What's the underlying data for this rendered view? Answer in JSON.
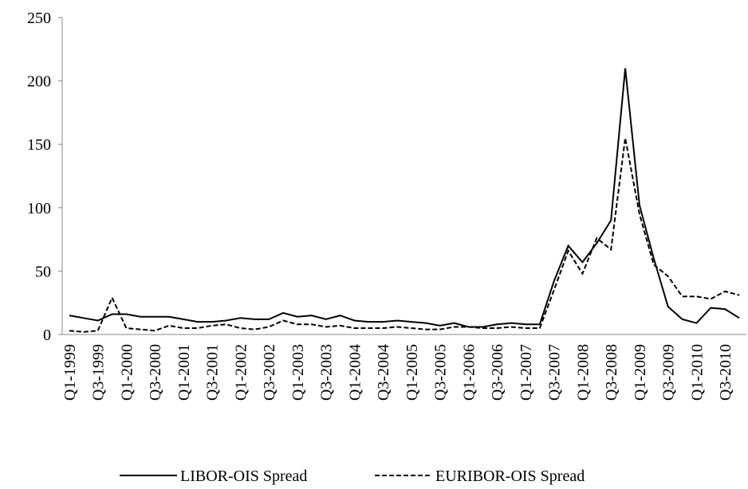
{
  "chart_data": {
    "type": "line",
    "categories": [
      "Q1-1999",
      null,
      "Q3-1999",
      null,
      "Q1-2000",
      null,
      "Q3-2000",
      null,
      "Q1-2001",
      null,
      "Q3-2001",
      null,
      "Q1-2002",
      null,
      "Q3-2002",
      null,
      "Q1-2003",
      null,
      "Q3-2003",
      null,
      "Q1-2004",
      null,
      "Q3-2004",
      null,
      "Q1-2005",
      null,
      "Q3-2005",
      null,
      "Q1-2006",
      null,
      "Q3-2006",
      null,
      "Q1-2007",
      null,
      "Q3-2007",
      null,
      "Q1-2008",
      null,
      "Q3-2008",
      null,
      "Q1-2009",
      null,
      "Q3-2009",
      null,
      "Q1-2010",
      null,
      "Q3-2010",
      null
    ],
    "series": [
      {
        "name": "LIBOR-OIS Spread",
        "color": "#000000",
        "dash": "solid",
        "values": [
          15,
          13,
          11,
          16,
          16,
          14,
          14,
          14,
          12,
          10,
          10,
          11,
          13,
          12,
          12,
          17,
          14,
          15,
          12,
          15,
          11,
          10,
          10,
          11,
          10,
          9,
          7,
          9,
          6,
          6,
          8,
          9,
          8,
          8,
          42,
          70,
          57,
          72,
          90,
          210,
          102,
          60,
          22,
          12,
          9,
          21,
          20,
          13
        ]
      },
      {
        "name": "EURIBOR-OIS Spread",
        "color": "#000000",
        "dash": "dashed",
        "values": [
          3,
          2,
          3,
          29,
          5,
          4,
          3,
          7,
          5,
          5,
          7,
          8,
          5,
          4,
          6,
          11,
          8,
          8,
          6,
          7,
          5,
          5,
          5,
          6,
          5,
          4,
          4,
          6,
          6,
          5,
          5,
          6,
          5,
          5,
          35,
          66,
          48,
          76,
          67,
          155,
          95,
          55,
          46,
          30,
          30,
          28,
          34,
          31
        ]
      }
    ],
    "ylim": [
      0,
      250
    ],
    "yticks": [
      0,
      50,
      100,
      150,
      200,
      250
    ],
    "grid": false,
    "legend": "bottom"
  }
}
